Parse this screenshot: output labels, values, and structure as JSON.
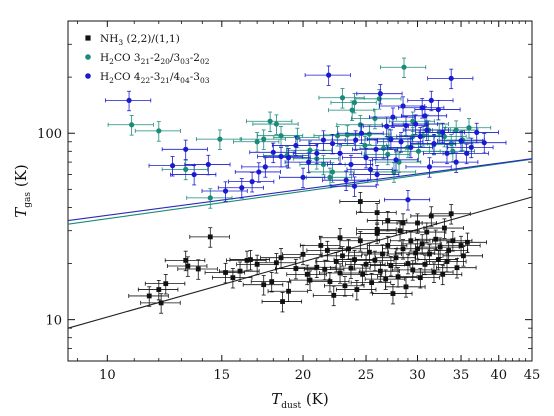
{
  "chart_data": {
    "type": "scatter",
    "xscale": "log",
    "yscale": "log",
    "xlim": [
      8.7,
      45
    ],
    "ylim": [
      6,
      400
    ],
    "xticks": [
      10,
      15,
      20,
      25,
      30,
      35,
      40,
      45
    ],
    "yticks": [
      10,
      100
    ],
    "xlabel": {
      "main": "T",
      "sub": "dust",
      "unit": " (K)"
    },
    "ylabel": {
      "main": "T",
      "sub": "gas",
      "unit": " (K)"
    },
    "legend": {
      "position": "top-left",
      "entries": [
        {
          "parts": [
            [
              "NH",
              ""
            ],
            [
              "3",
              "sub"
            ],
            [
              " (2,2)/(1,1)",
              ""
            ]
          ]
        },
        {
          "parts": [
            [
              "H",
              ""
            ],
            [
              "2",
              "sub"
            ],
            [
              "CO 3",
              ""
            ],
            [
              "21",
              "sub"
            ],
            [
              "-2",
              ""
            ],
            [
              "20",
              "sub"
            ],
            [
              "/3",
              ""
            ],
            [
              "03",
              "sub"
            ],
            [
              "-2",
              ""
            ],
            [
              "02",
              "sub"
            ]
          ]
        },
        {
          "parts": [
            [
              "H",
              ""
            ],
            [
              "2",
              "sub"
            ],
            [
              "CO 4",
              ""
            ],
            [
              "22",
              "sub"
            ],
            [
              "-3",
              ""
            ],
            [
              "21",
              "sub"
            ],
            [
              "/4",
              ""
            ],
            [
              "04",
              "sub"
            ],
            [
              "-3",
              ""
            ],
            [
              "03",
              "sub"
            ]
          ]
        }
      ]
    },
    "series": [
      {
        "name": "NH3 (2,2)/(1,1)",
        "color": "#111111",
        "marker": "square",
        "x_rel_err": 0.07,
        "y_rel_err": 0.12,
        "points": [
          [
            11.6,
            13.4
          ],
          [
            12.1,
            12.3
          ],
          [
            12.0,
            14.5
          ],
          [
            12.3,
            15.6
          ],
          [
            13.2,
            20.8
          ],
          [
            13.3,
            19.4
          ],
          [
            13.8,
            18.7
          ],
          [
            14.4,
            27.8
          ],
          [
            15.2,
            17.9
          ],
          [
            15.6,
            16.8
          ],
          [
            16.0,
            18.2
          ],
          [
            16.4,
            20.8
          ],
          [
            16.6,
            21.0
          ],
          [
            17.0,
            19.8
          ],
          [
            17.4,
            15.4
          ],
          [
            17.9,
            16.0
          ],
          [
            18.2,
            20.2
          ],
          [
            18.5,
            21.5
          ],
          [
            18.6,
            12.5
          ],
          [
            19.0,
            14.2
          ],
          [
            19.5,
            18.8
          ],
          [
            20.0,
            22.4
          ],
          [
            20.3,
            17.5
          ],
          [
            20.5,
            16.3
          ],
          [
            21.0,
            19.1
          ],
          [
            21.3,
            25.0
          ],
          [
            21.6,
            18.6
          ],
          [
            22.0,
            16.0
          ],
          [
            22.3,
            13.5
          ],
          [
            22.5,
            20.5
          ],
          [
            22.8,
            17.8
          ],
          [
            23.0,
            22.0
          ],
          [
            23.2,
            15.2
          ],
          [
            23.5,
            24.0
          ],
          [
            23.7,
            18.9
          ],
          [
            24.0,
            21.0
          ],
          [
            24.2,
            14.5
          ],
          [
            24.5,
            26.5
          ],
          [
            24.7,
            17.5
          ],
          [
            25.0,
            19.8
          ],
          [
            25.3,
            23.0
          ],
          [
            25.5,
            15.8
          ],
          [
            25.8,
            20.8
          ],
          [
            26.0,
            29.0
          ],
          [
            26.3,
            18.2
          ],
          [
            26.5,
            22.5
          ],
          [
            26.8,
            16.5
          ],
          [
            27.0,
            25.0
          ],
          [
            27.3,
            19.5
          ],
          [
            27.5,
            13.8
          ],
          [
            27.8,
            21.5
          ],
          [
            28.0,
            17.0
          ],
          [
            28.2,
            30.0
          ],
          [
            28.5,
            24.0
          ],
          [
            28.8,
            15.0
          ],
          [
            29.0,
            20.0
          ],
          [
            29.3,
            26.5
          ],
          [
            29.5,
            18.5
          ],
          [
            29.8,
            22.8
          ],
          [
            30.0,
            33.0
          ],
          [
            30.3,
            16.8
          ],
          [
            30.5,
            25.5
          ],
          [
            30.8,
            19.8
          ],
          [
            31.0,
            29.5
          ],
          [
            31.3,
            22.5
          ],
          [
            31.5,
            36.0
          ],
          [
            31.8,
            18.0
          ],
          [
            32.0,
            27.0
          ],
          [
            32.3,
            21.0
          ],
          [
            32.5,
            24.5
          ],
          [
            32.8,
            17.5
          ],
          [
            33.0,
            31.0
          ],
          [
            33.3,
            20.5
          ],
          [
            33.5,
            23.5
          ],
          [
            34.0,
            26.5
          ],
          [
            34.5,
            19.0
          ],
          [
            35.0,
            25.0
          ],
          [
            35.3,
            22.0
          ],
          [
            35.8,
            26.0
          ],
          [
            33.8,
            37.0
          ],
          [
            24.5,
            43.0
          ],
          [
            26.0,
            37.5
          ],
          [
            27.0,
            34.0
          ],
          [
            28.5,
            33.0
          ],
          [
            21.8,
            23.5
          ],
          [
            22.8,
            27.5
          ],
          [
            26.0,
            30.5
          ],
          [
            30.0,
            24.0
          ]
        ]
      },
      {
        "name": "H2CO 3(21)-2(20)/3(03)-2(02)",
        "color": "#1a8a7a",
        "marker": "circle",
        "x_rel_err": 0.08,
        "y_rel_err": 0.12,
        "points": [
          [
            10.9,
            111
          ],
          [
            12.0,
            103
          ],
          [
            13.2,
            64
          ],
          [
            14.4,
            45
          ],
          [
            14.9,
            93
          ],
          [
            17.0,
            90
          ],
          [
            17.4,
            93
          ],
          [
            17.8,
            116
          ],
          [
            18.2,
            112
          ],
          [
            18.5,
            97
          ],
          [
            18.9,
            76
          ],
          [
            19.6,
            95
          ],
          [
            20.5,
            81
          ],
          [
            21.0,
            73
          ],
          [
            21.5,
            68
          ],
          [
            22.2,
            62
          ],
          [
            22.6,
            97
          ],
          [
            23.0,
            155
          ],
          [
            23.4,
            98
          ],
          [
            23.8,
            133
          ],
          [
            24.0,
            146
          ],
          [
            24.5,
            111
          ],
          [
            24.9,
            86
          ],
          [
            25.3,
            99
          ],
          [
            25.8,
            120
          ],
          [
            26.2,
            153
          ],
          [
            26.6,
            83
          ],
          [
            27.1,
            94
          ],
          [
            27.6,
            62
          ],
          [
            28.1,
            70
          ],
          [
            28.6,
            226
          ],
          [
            29.0,
            84
          ],
          [
            29.5,
            116
          ],
          [
            30.1,
            80
          ],
          [
            30.6,
            97
          ],
          [
            31.2,
            104
          ],
          [
            31.8,
            87
          ],
          [
            32.4,
            101
          ],
          [
            33.0,
            96
          ],
          [
            33.8,
            88
          ],
          [
            34.4,
            104
          ],
          [
            35.2,
            92
          ],
          [
            36.0,
            107
          ],
          [
            22.0,
            58
          ],
          [
            27.0,
            77
          ],
          [
            29.5,
            96
          ],
          [
            31.0,
            112
          ],
          [
            34.0,
            80
          ]
        ]
      },
      {
        "name": "H2CO 4(22)-3(21)/4(04)-3(03)",
        "color": "#1a1ad0",
        "marker": "circle",
        "x_rel_err": 0.08,
        "y_rel_err": 0.12,
        "points": [
          [
            10.8,
            150
          ],
          [
            12.6,
            67
          ],
          [
            13.2,
            82
          ],
          [
            13.6,
            60
          ],
          [
            14.3,
            68
          ],
          [
            15.2,
            49
          ],
          [
            16.1,
            51
          ],
          [
            16.7,
            55
          ],
          [
            17.1,
            62
          ],
          [
            17.5,
            66
          ],
          [
            18.0,
            79
          ],
          [
            18.5,
            75
          ],
          [
            19.0,
            74
          ],
          [
            19.5,
            86
          ],
          [
            20.0,
            58
          ],
          [
            20.4,
            70
          ],
          [
            21.0,
            78
          ],
          [
            21.5,
            92
          ],
          [
            21.9,
            205
          ],
          [
            22.2,
            88
          ],
          [
            22.8,
            78
          ],
          [
            23.3,
            56
          ],
          [
            23.7,
            68
          ],
          [
            24.1,
            92
          ],
          [
            24.6,
            100
          ],
          [
            25.0,
            74
          ],
          [
            25.4,
            64
          ],
          [
            25.9,
            82
          ],
          [
            26.3,
            163
          ],
          [
            26.9,
            109
          ],
          [
            27.3,
            93
          ],
          [
            27.8,
            72
          ],
          [
            28.3,
            90
          ],
          [
            28.8,
            110
          ],
          [
            29.3,
            84
          ],
          [
            29.8,
            112
          ],
          [
            30.3,
            96
          ],
          [
            30.8,
            124
          ],
          [
            31.3,
            66
          ],
          [
            31.8,
            88
          ],
          [
            32.3,
            134
          ],
          [
            32.8,
            101
          ],
          [
            33.3,
            78
          ],
          [
            33.8,
            197
          ],
          [
            34.4,
            70
          ],
          [
            35.0,
            91
          ],
          [
            35.7,
            78
          ],
          [
            36.3,
            84
          ],
          [
            37.0,
            101
          ],
          [
            38.0,
            89
          ],
          [
            29.0,
            44
          ],
          [
            26.0,
            60
          ],
          [
            24.0,
            52
          ],
          [
            31.5,
            150
          ],
          [
            30.5,
            137
          ],
          [
            27.5,
            122
          ],
          [
            28.5,
            140
          ],
          [
            31.0,
            104
          ]
        ]
      }
    ],
    "fit_lines": [
      {
        "color": "#222222",
        "x": [
          8.7,
          45
        ],
        "y": [
          9.0,
          45.5
        ]
      },
      {
        "color": "#1a8a7a",
        "x": [
          8.7,
          45
        ],
        "y": [
          32.5,
          72.5
        ]
      },
      {
        "color": "#2a2ab8",
        "x": [
          8.7,
          45
        ],
        "y": [
          34.0,
          73.0
        ]
      }
    ]
  }
}
